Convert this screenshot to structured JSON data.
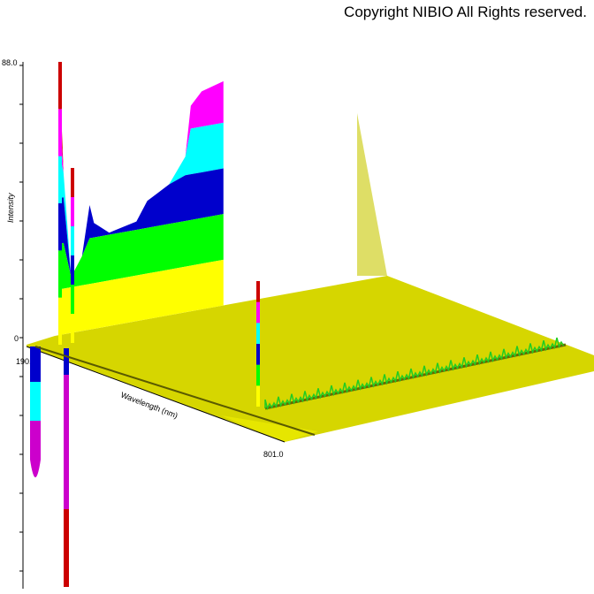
{
  "header": {
    "copyright": "Copyright NIBIO All Rights reserved."
  },
  "chart_data": {
    "type": "area",
    "title": "",
    "xlabel": "Wavelength (nm)",
    "ylabel": "Intensity",
    "x_range": [
      190.0,
      801.0
    ],
    "x_tick_labels": [
      "190.0",
      "801.0"
    ],
    "y_tick_labels": [
      "88.0",
      "0"
    ],
    "ylim": [
      0,
      88.0
    ],
    "style": "3D contour spectrum (time vs. wavelength), color-banded by intensity",
    "band_colors": [
      "#ffff00",
      "#00ff00",
      "#0000cc",
      "#00ffff",
      "#ff00ff",
      "#cc0000"
    ],
    "surface_color": "#d6d600",
    "series": [
      {
        "values_at_wavelengths": [
          {
            "x": 198,
            "y": 88.0
          },
          {
            "x": 206,
            "y": 52.0
          },
          {
            "x": 220,
            "y": 18.0
          },
          {
            "x": 240,
            "y": 24.0
          },
          {
            "x": 254,
            "y": 40.0
          },
          {
            "x": 262,
            "y": 34.0
          },
          {
            "x": 290,
            "y": 30.0
          },
          {
            "x": 340,
            "y": 32.0
          },
          {
            "x": 360,
            "y": 38.0
          },
          {
            "x": 380,
            "y": 40.0
          },
          {
            "x": 400,
            "y": 42.0
          },
          {
            "x": 430,
            "y": 50.0
          },
          {
            "x": 440,
            "y": 66.0
          },
          {
            "x": 460,
            "y": 70.0
          },
          {
            "x": 500,
            "y": 72.0
          }
        ]
      }
    ]
  }
}
